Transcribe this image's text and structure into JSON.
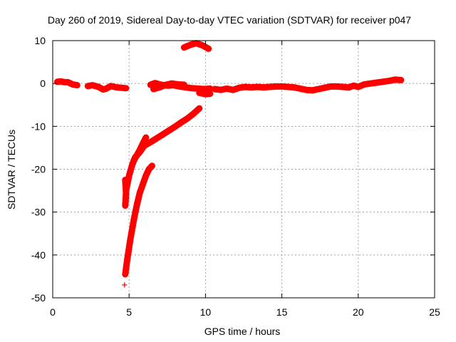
{
  "chart_data": {
    "type": "scatter",
    "title": "Day 260 of 2019, Sidereal Day-to-day VTEC variation (SDTVAR) for receiver p047",
    "xlabel": "GPS time / hours",
    "ylabel": "SDTVAR / TECUs",
    "xlim": [
      0,
      25
    ],
    "ylim": [
      -50,
      10
    ],
    "xticks": [
      "0",
      "5",
      "10",
      "15",
      "20",
      "25"
    ],
    "yticks": [
      "10",
      "0",
      "-10",
      "-20",
      "-30",
      "-40",
      "-50"
    ],
    "grid": true,
    "marker": "+",
    "color": "#ff0000",
    "series": [
      {
        "segments": [
          [
            [
              0.3,
              0.4
            ],
            [
              0.5,
              0.5
            ],
            [
              0.8,
              0.3
            ],
            [
              1.0,
              0.3
            ],
            [
              1.3,
              -0.2
            ],
            [
              1.6,
              -0.4
            ]
          ],
          [
            [
              2.3,
              -0.6
            ],
            [
              2.6,
              -0.4
            ],
            [
              3.0,
              -0.8
            ],
            [
              3.3,
              -1.4
            ],
            [
              3.5,
              -1.2
            ],
            [
              3.8,
              -0.6
            ],
            [
              4.2,
              -0.9
            ],
            [
              4.5,
              -1.0
            ],
            [
              4.8,
              -1.1
            ]
          ],
          [
            [
              6.4,
              -0.3
            ],
            [
              6.7,
              0.1
            ],
            [
              7.1,
              -0.3
            ],
            [
              7.5,
              -0.5
            ],
            [
              7.9,
              -0.4
            ],
            [
              8.3,
              -0.7
            ],
            [
              8.7,
              -0.9
            ],
            [
              9.1,
              -1.1
            ],
            [
              9.5,
              -1.2
            ],
            [
              9.9,
              -1.3
            ],
            [
              10.3,
              -1.2
            ]
          ],
          [
            [
              6.6,
              -1.3
            ],
            [
              7.0,
              -0.9
            ],
            [
              7.4,
              -0.3
            ],
            [
              7.8,
              0.0
            ],
            [
              8.2,
              -0.2
            ],
            [
              8.6,
              -0.3
            ]
          ],
          [
            [
              9.6,
              -2.2
            ],
            [
              10.0,
              -2.5
            ],
            [
              10.3,
              -2.4
            ]
          ],
          [
            [
              10.6,
              -1.3
            ],
            [
              11.0,
              -1.5
            ],
            [
              11.4,
              -1.2
            ],
            [
              11.8,
              -1.5
            ],
            [
              12.2,
              -1.0
            ],
            [
              12.6,
              -0.8
            ],
            [
              13.0,
              -0.9
            ],
            [
              13.4,
              -0.8
            ],
            [
              13.8,
              -0.9
            ],
            [
              14.2,
              -0.8
            ],
            [
              14.6,
              -0.7
            ],
            [
              15.0,
              -0.7
            ],
            [
              15.4,
              -0.8
            ],
            [
              15.8,
              -0.9
            ]
          ],
          [
            [
              15.8,
              -0.9
            ],
            [
              16.2,
              -1.2
            ],
            [
              16.6,
              -1.5
            ],
            [
              17.0,
              -1.6
            ],
            [
              17.4,
              -1.3
            ],
            [
              17.8,
              -1.0
            ],
            [
              18.2,
              -0.7
            ],
            [
              18.6,
              -0.7
            ],
            [
              19.0,
              -0.8
            ],
            [
              19.4,
              -0.9
            ],
            [
              19.7,
              -0.5
            ],
            [
              20.0,
              -0.8
            ],
            [
              20.4,
              -0.2
            ],
            [
              20.8,
              0.0
            ],
            [
              21.2,
              0.2
            ],
            [
              21.6,
              0.4
            ],
            [
              22.0,
              0.6
            ],
            [
              22.4,
              0.9
            ],
            [
              22.8,
              0.8
            ]
          ],
          [
            [
              8.6,
              8.4
            ],
            [
              9.0,
              9.0
            ],
            [
              9.4,
              9.4
            ],
            [
              9.8,
              8.9
            ],
            [
              10.2,
              8.1
            ]
          ],
          [
            [
              4.8,
              -25.0
            ],
            [
              5.0,
              -21.5
            ],
            [
              5.2,
              -19.0
            ],
            [
              5.4,
              -17.2
            ],
            [
              5.7,
              -16.0
            ],
            [
              6.0,
              -14.5
            ],
            [
              6.4,
              -13.7
            ],
            [
              6.8,
              -12.8
            ],
            [
              7.2,
              -11.9
            ],
            [
              7.6,
              -11.0
            ],
            [
              8.0,
              -10.1
            ],
            [
              8.4,
              -9.1
            ],
            [
              8.8,
              -8.2
            ],
            [
              9.2,
              -7.1
            ],
            [
              9.6,
              -5.8
            ]
          ],
          [
            [
              5.3,
              -18.0
            ],
            [
              5.5,
              -16.8
            ],
            [
              5.7,
              -15.5
            ],
            [
              5.9,
              -14.0
            ],
            [
              6.1,
              -12.6
            ]
          ],
          [
            [
              4.75,
              -22.5
            ],
            [
              4.8,
              -25.5
            ],
            [
              4.75,
              -28.5
            ]
          ],
          [
            [
              4.75,
              -44.5
            ],
            [
              4.9,
              -40.5
            ],
            [
              5.1,
              -36.0
            ],
            [
              5.3,
              -32.0
            ],
            [
              5.5,
              -28.5
            ],
            [
              5.7,
              -25.5
            ],
            [
              5.9,
              -23.5
            ],
            [
              6.1,
              -21.5
            ],
            [
              6.3,
              -20.0
            ],
            [
              6.5,
              -19.2
            ]
          ],
          [
            [
              4.7,
              -47.0
            ]
          ]
        ]
      }
    ]
  }
}
